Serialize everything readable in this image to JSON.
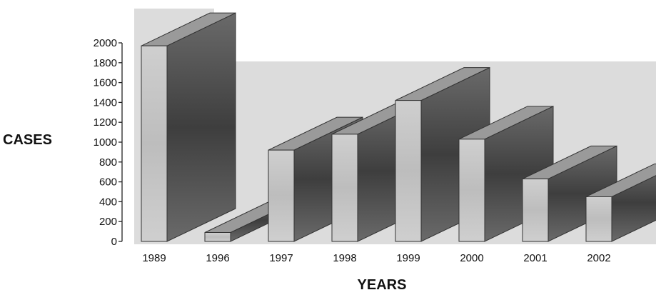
{
  "chart_data": {
    "type": "bar",
    "style": "3d",
    "categories": [
      "1989",
      "1996",
      "1997",
      "1998",
      "1999",
      "2000",
      "2001",
      "2002"
    ],
    "values": [
      1970,
      90,
      920,
      1080,
      1420,
      1030,
      630,
      450
    ],
    "xlabel": "YEARS",
    "ylabel": "CASES",
    "ylim": [
      0,
      2000
    ],
    "yticks": [
      0,
      200,
      400,
      600,
      800,
      1000,
      1200,
      1400,
      1600,
      1800,
      2000
    ],
    "grid": false,
    "legend": "none",
    "colors": {
      "bar_front": "#c4c4c4",
      "bar_side": "#5e5e5e",
      "bar_top": "#9a9a9a",
      "wall": "#dcdcdc"
    }
  }
}
